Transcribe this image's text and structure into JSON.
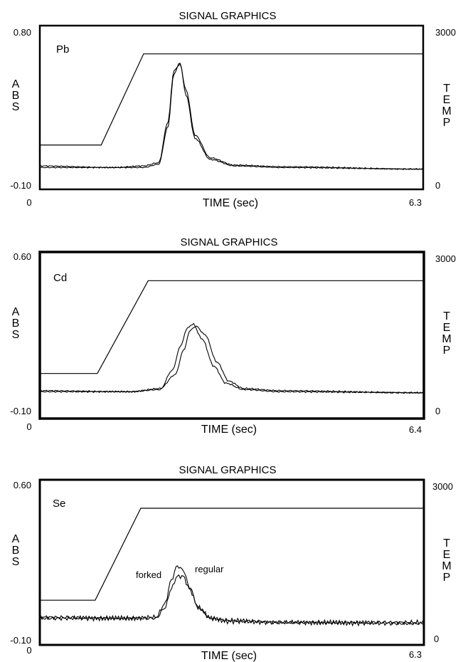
{
  "chart_data": [
    {
      "type": "line",
      "title": "SIGNAL GRAPHICS",
      "element": "Pb",
      "xlabel": "TIME (sec)",
      "ylabel": "ABS",
      "y2label": "TEMP",
      "x_tick_labels": [
        "0",
        "6.3"
      ],
      "y_tick_labels": [
        "0.80",
        "-0.10"
      ],
      "y2_tick_labels": [
        "3000",
        "0"
      ],
      "xlim": [
        0,
        6.3
      ],
      "ylim": [
        -0.1,
        0.8
      ],
      "y2lim": [
        0,
        3000
      ],
      "grid": false,
      "temperature": {
        "x": [
          0,
          1.0,
          1.7,
          6.3
        ],
        "temp": [
          800,
          800,
          2500,
          2500
        ]
      },
      "series": [
        {
          "x": [
            0,
            1.2,
            1.7,
            1.95,
            2.1,
            2.2,
            2.3,
            2.4,
            2.55,
            2.8,
            3.2,
            4.0,
            6.3
          ],
          "abs": [
            0.0,
            0.0,
            0.0,
            0.02,
            0.25,
            0.58,
            0.65,
            0.45,
            0.18,
            0.05,
            0.01,
            0.0,
            -0.01
          ]
        },
        {
          "x": [
            0,
            1.2,
            1.7,
            1.95,
            2.1,
            2.2,
            2.3,
            2.4,
            2.55,
            2.8,
            3.2,
            4.0,
            6.3
          ],
          "abs": [
            0.01,
            0.0,
            0.01,
            0.03,
            0.28,
            0.6,
            0.64,
            0.48,
            0.2,
            0.06,
            0.015,
            0.005,
            -0.01
          ]
        }
      ]
    },
    {
      "type": "line",
      "title": "SIGNAL GRAPHICS",
      "element": "Cd",
      "xlabel": "TIME (sec)",
      "ylabel": "ABS",
      "y2label": "TEMP",
      "x_tick_labels": [
        "0",
        "6.4"
      ],
      "y_tick_labels": [
        "0.60",
        "-0.10"
      ],
      "y2_tick_labels": [
        "3000",
        "0"
      ],
      "xlim": [
        0,
        6.4
      ],
      "ylim": [
        -0.1,
        0.6
      ],
      "y2lim": [
        0,
        3000
      ],
      "grid": false,
      "temperature": {
        "x": [
          0,
          0.95,
          1.8,
          6.4
        ],
        "temp": [
          800,
          800,
          2500,
          2500
        ]
      },
      "series": [
        {
          "x": [
            0,
            1.5,
            2.0,
            2.2,
            2.35,
            2.45,
            2.55,
            2.7,
            2.9,
            3.1,
            3.4,
            4.0,
            6.4
          ],
          "abs": [
            0.0,
            0.0,
            0.01,
            0.1,
            0.22,
            0.3,
            0.32,
            0.25,
            0.12,
            0.04,
            0.01,
            0.0,
            -0.005
          ]
        },
        {
          "x": [
            0,
            1.5,
            2.0,
            2.25,
            2.4,
            2.5,
            2.6,
            2.75,
            2.95,
            3.15,
            3.4,
            4.0,
            6.4
          ],
          "abs": [
            0.005,
            0.0,
            0.015,
            0.08,
            0.2,
            0.29,
            0.31,
            0.27,
            0.14,
            0.05,
            0.015,
            0.005,
            -0.005
          ]
        }
      ]
    },
    {
      "type": "line",
      "title": "SIGNAL GRAPHICS",
      "element": "Se",
      "xlabel": "TIME (sec)",
      "ylabel": "ABS",
      "y2label": "TEMP",
      "x_tick_labels": [
        "0",
        "6.3"
      ],
      "y_tick_labels": [
        "0.60",
        "-0.10"
      ],
      "y2_tick_labels": [
        "3000",
        "0"
      ],
      "xlim": [
        0,
        6.3
      ],
      "ylim": [
        -0.1,
        0.6
      ],
      "y2lim": [
        0,
        3000
      ],
      "grid": false,
      "temperature": {
        "x": [
          0,
          0.9,
          1.65,
          6.3
        ],
        "temp": [
          800,
          800,
          2500,
          2500
        ]
      },
      "annotations": [
        "forked",
        "regular"
      ],
      "series": [
        {
          "name": "forked",
          "x": [
            0,
            1.4,
            1.9,
            2.05,
            2.15,
            2.25,
            2.35,
            2.45,
            2.6,
            2.8,
            3.1,
            4.0,
            6.3
          ],
          "abs": [
            0.0,
            0.0,
            0.0,
            0.05,
            0.14,
            0.2,
            0.2,
            0.14,
            0.05,
            0.0,
            -0.01,
            -0.02,
            -0.02
          ]
        },
        {
          "name": "regular",
          "x": [
            0,
            1.4,
            1.9,
            2.05,
            2.15,
            2.25,
            2.35,
            2.45,
            2.6,
            2.8,
            3.1,
            4.0,
            6.3
          ],
          "abs": [
            0.005,
            0.0,
            0.005,
            0.07,
            0.18,
            0.25,
            0.23,
            0.15,
            0.05,
            0.0,
            -0.015,
            -0.02,
            -0.025
          ]
        }
      ]
    }
  ]
}
